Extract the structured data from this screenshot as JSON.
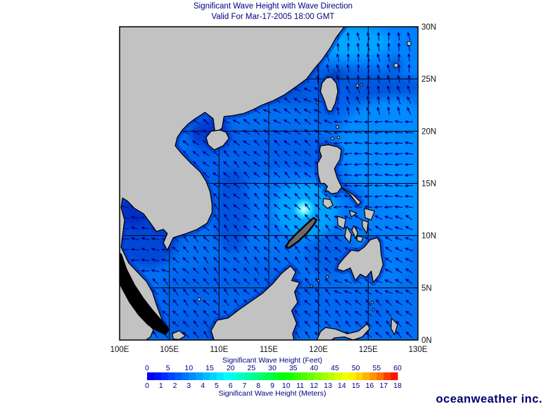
{
  "title": {
    "line1": "Significant Wave Height with Wave Direction",
    "line2": "Valid For Mar-17-2005 18:00 GMT"
  },
  "map": {
    "extent": {
      "lon_min": 100,
      "lon_max": 130,
      "lat_min": 0,
      "lat_max": 30
    },
    "grid_interval_deg": 5,
    "lon_labels": [
      "100E",
      "105E",
      "110E",
      "115E",
      "120E",
      "125E",
      "130E"
    ],
    "lat_labels": [
      "30N",
      "25N",
      "20N",
      "15N",
      "10N",
      "5N",
      "0N"
    ],
    "land_color": "#c2c2c2",
    "coast_color": "#000000",
    "nodata_color": "#000000",
    "grid_color": "#000000",
    "arrow_color": "#000080",
    "ocean_base_color": "#0070F0",
    "peak_wave_estimate": {
      "location": "west of Luzon ~118E 12N",
      "height_m": "≈5",
      "color": "bright cyan"
    },
    "wave_direction_zones": [
      {
        "lat_min": 24,
        "bearing": 188
      },
      {
        "lon_min": 120,
        "lat_min": 21,
        "bearing": 197
      },
      {
        "lon_min": 121.5,
        "lat_min": 12,
        "bearing": 268
      },
      {
        "lon_min": 121.5,
        "lat_min": 4,
        "bearing": 242
      },
      {
        "lon_min": 121.5,
        "bearing": 225
      },
      {
        "lon_max": 105.5,
        "lat_min": 6,
        "lat_max": 14,
        "bearing": 262
      },
      {
        "lat_min": 19,
        "bearing": 237
      },
      {
        "lat_min": 12,
        "bearing": 228
      },
      {
        "bearing": 222
      }
    ]
  },
  "legend": {
    "feet": {
      "label": "Significant Wave Height (Feet)",
      "ticks": [
        0,
        5,
        10,
        15,
        20,
        25,
        30,
        35,
        40,
        45,
        50,
        55,
        60
      ]
    },
    "meters": {
      "label": "Significant Wave Height (Meters)",
      "ticks": [
        0,
        1,
        2,
        3,
        4,
        5,
        6,
        7,
        8,
        9,
        10,
        11,
        12,
        13,
        14,
        15,
        16,
        17,
        18
      ]
    },
    "colors": [
      "#0000F0",
      "#0014FF",
      "#002CFF",
      "#0044FF",
      "#005CFF",
      "#0074FF",
      "#008CFF",
      "#00A4FF",
      "#00BCFF",
      "#00D4FF",
      "#00E8FF",
      "#00FCFC",
      "#00FFE4",
      "#00FFC8",
      "#00FFAC",
      "#00FF8C",
      "#00FF6C",
      "#00FF4C",
      "#00FF2C",
      "#00FF0C",
      "#14FF00",
      "#30FF00",
      "#4CFF00",
      "#68FF00",
      "#84FF00",
      "#A0FF00",
      "#BCFF00",
      "#D8FF00",
      "#F4FF00",
      "#FFF000",
      "#FFD400",
      "#FFB400",
      "#FF9400",
      "#FF7000",
      "#FF3C00",
      "#FF1400"
    ],
    "text_color": "#000080"
  },
  "attribution": "oceanweather inc."
}
